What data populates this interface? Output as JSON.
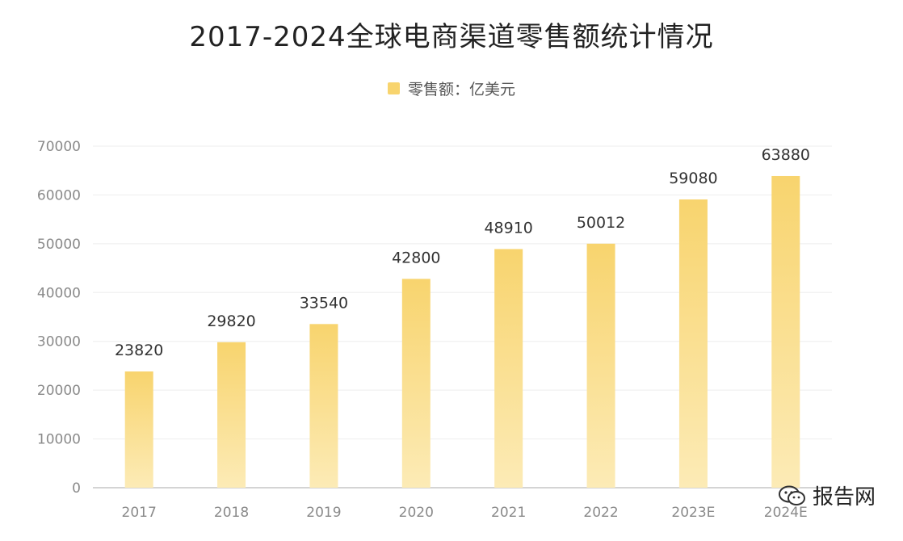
{
  "chart_data": {
    "type": "bar",
    "title": "2017-2024全球电商渠道零售额统计情况",
    "categories": [
      "2017",
      "2018",
      "2019",
      "2020",
      "2021",
      "2022",
      "2023E",
      "2024E"
    ],
    "series": [
      {
        "name": "零售额：亿美元",
        "values": [
          23820,
          29820,
          33540,
          42800,
          48910,
          50012,
          59080,
          63880
        ]
      }
    ],
    "ylim": [
      0,
      70000
    ],
    "yticks": [
      0,
      10000,
      20000,
      30000,
      40000,
      50000,
      60000,
      70000
    ],
    "grid": true,
    "legend_position": "top-center",
    "colors": {
      "bar_top": "#F8D46E",
      "bar_bottom": "#FCEBB6",
      "grid": "#EEEEEE",
      "axis": "#BBBBBB"
    }
  },
  "watermark": {
    "text": "报告网",
    "icon": "wechat-icon"
  }
}
